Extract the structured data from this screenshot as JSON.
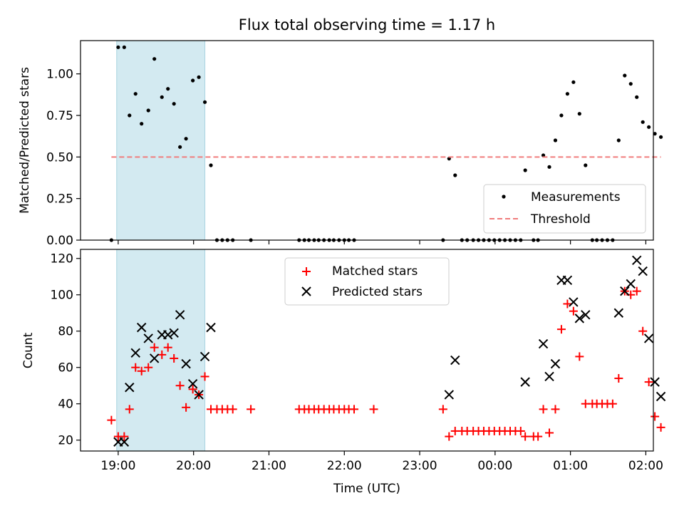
{
  "chart_data": [
    {
      "type": "scatter",
      "title": "Flux total observing time = 1.17 h",
      "xlabel": "",
      "ylabel": "Matched/Predicted stars",
      "ylim": [
        0,
        1.2
      ],
      "yticks": [
        0,
        0.25,
        0.5,
        0.75,
        1.0
      ],
      "ytick_labels": [
        "0.00",
        "0.25",
        "0.50",
        "0.75",
        "1.00"
      ],
      "xlim": [
        18.5,
        26.1
      ],
      "xticks": [
        19,
        20,
        21,
        22,
        23,
        24,
        25,
        26
      ],
      "shaded_span": [
        18.98,
        20.15
      ],
      "shade_color": "#d3eaf1",
      "legend": {
        "placement": "lower-right",
        "entries": [
          "Measurements",
          "Threshold"
        ]
      },
      "series": [
        {
          "name": "Measurements",
          "marker": "dot",
          "color": "#000000",
          "points": [
            [
              18.91,
              0
            ],
            [
              19.0,
              1.16
            ],
            [
              19.08,
              1.16
            ],
            [
              19.15,
              0.75
            ],
            [
              19.23,
              0.88
            ],
            [
              19.31,
              0.7
            ],
            [
              19.4,
              0.78
            ],
            [
              19.48,
              1.09
            ],
            [
              19.58,
              0.86
            ],
            [
              19.66,
              0.91
            ],
            [
              19.74,
              0.82
            ],
            [
              19.82,
              0.56
            ],
            [
              19.9,
              0.61
            ],
            [
              19.99,
              0.96
            ],
            [
              20.07,
              0.98
            ],
            [
              20.15,
              0.83
            ],
            [
              20.23,
              0.45
            ],
            [
              20.31,
              0
            ],
            [
              20.38,
              0
            ],
            [
              20.45,
              0
            ],
            [
              20.52,
              0
            ],
            [
              20.76,
              0
            ],
            [
              21.4,
              0
            ],
            [
              21.47,
              0
            ],
            [
              21.53,
              0
            ],
            [
              21.6,
              0
            ],
            [
              21.66,
              0
            ],
            [
              21.73,
              0
            ],
            [
              21.8,
              0
            ],
            [
              21.86,
              0
            ],
            [
              21.93,
              0
            ],
            [
              22.0,
              0
            ],
            [
              22.06,
              0
            ],
            [
              22.13,
              0
            ],
            [
              23.31,
              0
            ],
            [
              23.39,
              0.49
            ],
            [
              23.47,
              0.39
            ],
            [
              23.56,
              0
            ],
            [
              23.63,
              0
            ],
            [
              23.71,
              0
            ],
            [
              23.78,
              0
            ],
            [
              23.85,
              0
            ],
            [
              23.92,
              0
            ],
            [
              23.99,
              0
            ],
            [
              24.06,
              0
            ],
            [
              24.13,
              0
            ],
            [
              24.2,
              0
            ],
            [
              24.27,
              0
            ],
            [
              24.34,
              0
            ],
            [
              24.4,
              0.42
            ],
            [
              24.51,
              0
            ],
            [
              24.57,
              0
            ],
            [
              24.64,
              0.51
            ],
            [
              24.72,
              0.44
            ],
            [
              24.8,
              0.6
            ],
            [
              24.88,
              0.75
            ],
            [
              24.96,
              0.88
            ],
            [
              25.04,
              0.95
            ],
            [
              25.12,
              0.76
            ],
            [
              25.2,
              0.45
            ],
            [
              25.29,
              0
            ],
            [
              25.35,
              0
            ],
            [
              25.42,
              0
            ],
            [
              25.49,
              0
            ],
            [
              25.56,
              0
            ],
            [
              25.64,
              0.6
            ],
            [
              25.72,
              0.99
            ],
            [
              25.8,
              0.94
            ],
            [
              25.88,
              0.86
            ],
            [
              25.96,
              0.71
            ],
            [
              26.04,
              0.68
            ],
            [
              26.12,
              0.64
            ],
            [
              26.2,
              0.62
            ]
          ]
        },
        {
          "name": "Threshold",
          "line_style": "dashed",
          "color": "#f07c7c",
          "points": [
            [
              18.91,
              0.5
            ],
            [
              26.2,
              0.5
            ]
          ]
        }
      ]
    },
    {
      "type": "scatter",
      "title": "",
      "xlabel": "Time (UTC)",
      "ylabel": "Count",
      "ylim": [
        14,
        125
      ],
      "yticks": [
        20,
        40,
        60,
        80,
        100,
        120
      ],
      "ytick_labels": [
        "20",
        "40",
        "60",
        "80",
        "100",
        "120"
      ],
      "xlim": [
        18.5,
        26.1
      ],
      "xticks": [
        19,
        20,
        21,
        22,
        23,
        24,
        25,
        26
      ],
      "xtick_labels": [
        "19:00",
        "20:00",
        "21:00",
        "22:00",
        "23:00",
        "00:00",
        "01:00",
        "02:00"
      ],
      "shaded_span": [
        18.98,
        20.15
      ],
      "shade_color": "#d3eaf1",
      "legend": {
        "placement": "upper-center",
        "entries": [
          "Matched stars",
          "Predicted stars"
        ]
      },
      "series": [
        {
          "name": "Matched stars",
          "marker": "plus",
          "color": "#ff0000",
          "points": [
            [
              18.91,
              31
            ],
            [
              19.0,
              22
            ],
            [
              19.08,
              22
            ],
            [
              19.15,
              37
            ],
            [
              19.23,
              60
            ],
            [
              19.31,
              58
            ],
            [
              19.4,
              60
            ],
            [
              19.48,
              71
            ],
            [
              19.58,
              67
            ],
            [
              19.66,
              71
            ],
            [
              19.74,
              65
            ],
            [
              19.82,
              50
            ],
            [
              19.9,
              38
            ],
            [
              19.99,
              48
            ],
            [
              20.07,
              45
            ],
            [
              20.15,
              55
            ],
            [
              20.23,
              37
            ],
            [
              20.31,
              37
            ],
            [
              20.38,
              37
            ],
            [
              20.45,
              37
            ],
            [
              20.52,
              37
            ],
            [
              20.76,
              37
            ],
            [
              21.4,
              37
            ],
            [
              21.47,
              37
            ],
            [
              21.53,
              37
            ],
            [
              21.6,
              37
            ],
            [
              21.66,
              37
            ],
            [
              21.73,
              37
            ],
            [
              21.8,
              37
            ],
            [
              21.86,
              37
            ],
            [
              21.93,
              37
            ],
            [
              22.0,
              37
            ],
            [
              22.06,
              37
            ],
            [
              22.13,
              37
            ],
            [
              22.39,
              37
            ],
            [
              23.31,
              37
            ],
            [
              23.39,
              22
            ],
            [
              23.47,
              25
            ],
            [
              23.56,
              25
            ],
            [
              23.63,
              25
            ],
            [
              23.71,
              25
            ],
            [
              23.78,
              25
            ],
            [
              23.85,
              25
            ],
            [
              23.92,
              25
            ],
            [
              23.99,
              25
            ],
            [
              24.06,
              25
            ],
            [
              24.13,
              25
            ],
            [
              24.2,
              25
            ],
            [
              24.27,
              25
            ],
            [
              24.34,
              25
            ],
            [
              24.4,
              22
            ],
            [
              24.51,
              22
            ],
            [
              24.57,
              22
            ],
            [
              24.64,
              37
            ],
            [
              24.72,
              24
            ],
            [
              24.8,
              37
            ],
            [
              24.88,
              81
            ],
            [
              24.96,
              95
            ],
            [
              25.04,
              91
            ],
            [
              25.12,
              66
            ],
            [
              25.2,
              40
            ],
            [
              25.29,
              40
            ],
            [
              25.35,
              40
            ],
            [
              25.42,
              40
            ],
            [
              25.49,
              40
            ],
            [
              25.56,
              40
            ],
            [
              25.64,
              54
            ],
            [
              25.72,
              102
            ],
            [
              25.8,
              100
            ],
            [
              25.88,
              102
            ],
            [
              25.96,
              80
            ],
            [
              26.04,
              52
            ],
            [
              26.12,
              33
            ],
            [
              26.2,
              27
            ]
          ]
        },
        {
          "name": "Predicted stars",
          "marker": "x",
          "color": "#000000",
          "points": [
            [
              19.0,
              19
            ],
            [
              19.08,
              19
            ],
            [
              19.15,
              49
            ],
            [
              19.23,
              68
            ],
            [
              19.31,
              82
            ],
            [
              19.4,
              76
            ],
            [
              19.48,
              65
            ],
            [
              19.58,
              78
            ],
            [
              19.66,
              78
            ],
            [
              19.74,
              79
            ],
            [
              19.82,
              89
            ],
            [
              19.9,
              62
            ],
            [
              19.99,
              51
            ],
            [
              20.07,
              45
            ],
            [
              20.15,
              66
            ],
            [
              20.23,
              82
            ],
            [
              23.39,
              45
            ],
            [
              23.47,
              64
            ],
            [
              24.4,
              52
            ],
            [
              24.64,
              73
            ],
            [
              24.72,
              55
            ],
            [
              24.8,
              62
            ],
            [
              24.88,
              108
            ],
            [
              24.96,
              108
            ],
            [
              25.04,
              96
            ],
            [
              25.12,
              87
            ],
            [
              25.2,
              89
            ],
            [
              25.64,
              90
            ],
            [
              25.72,
              102
            ],
            [
              25.8,
              106
            ],
            [
              25.88,
              119
            ],
            [
              25.96,
              113
            ],
            [
              26.04,
              76
            ],
            [
              26.12,
              52
            ],
            [
              26.2,
              44
            ]
          ]
        }
      ]
    }
  ]
}
